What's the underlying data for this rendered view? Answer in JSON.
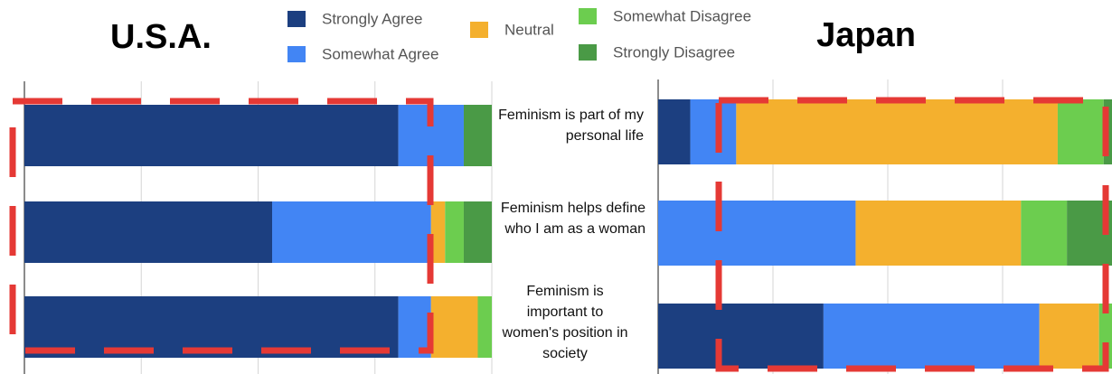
{
  "chart_data": {
    "type": "bar",
    "orientation": "horizontal",
    "stacked": true,
    "categories": [
      "Feminism is part of my personal life",
      "Feminism helps define who I am as a woman",
      "Feminism is important to women's position in society"
    ],
    "series": [
      {
        "name": "Strongly Agree",
        "color": "#1c3f80"
      },
      {
        "name": "Somewhat Agree",
        "color": "#4285f4"
      },
      {
        "name": "Neutral",
        "color": "#f4b02e"
      },
      {
        "name": "Somewhat Disagree",
        "color": "#6ccd4f"
      },
      {
        "name": "Strongly Disagree",
        "color": "#4a9a46"
      }
    ],
    "xlim": [
      0,
      100
    ],
    "xticks": [
      0,
      25,
      50,
      75,
      100
    ],
    "grid": true,
    "panels": [
      {
        "title": "U.S.A.",
        "series": [
          {
            "values": [
              80,
              53,
              80
            ]
          },
          {
            "values": [
              14,
              34,
              7
            ]
          },
          {
            "values": [
              0,
              3,
              10
            ]
          },
          {
            "values": [
              0,
              4,
              3
            ]
          },
          {
            "values": [
              6,
              6,
              0
            ]
          }
        ]
      },
      {
        "title": "Japan",
        "series": [
          {
            "values": [
              7,
              0,
              36
            ]
          },
          {
            "values": [
              10,
              43,
              47
            ]
          },
          {
            "values": [
              70,
              36,
              13
            ]
          },
          {
            "values": [
              10,
              10,
              4
            ]
          },
          {
            "values": [
              3,
              11,
              0
            ]
          }
        ]
      }
    ]
  }
}
